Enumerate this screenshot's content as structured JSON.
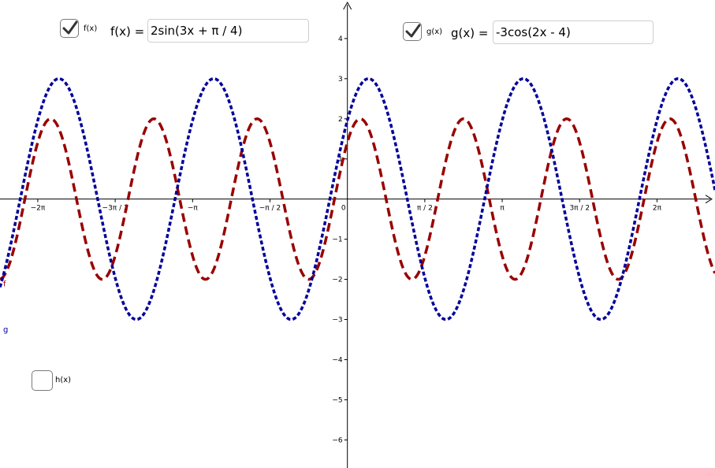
{
  "controls": {
    "f": {
      "checkbox_label": "f(x)",
      "equation_label": "f(x) = .",
      "input_value": "2sin(3x + π / 4)",
      "checked": true
    },
    "g": {
      "checkbox_label": "g(x)",
      "equation_label": "g(x) = .",
      "input_value": "-3cos(2x - 4)",
      "checked": true
    },
    "h": {
      "checkbox_label": "h(x)",
      "checked": false
    }
  },
  "colors": {
    "f": "#990000",
    "g": "#000099",
    "axis": "#000000"
  },
  "chart_data": {
    "type": "line",
    "xlim": [
      -7.05,
      7.46
    ],
    "ylim": [
      -6.7,
      4.96
    ],
    "x_ticks": [
      {
        "value": -6.2832,
        "label": "−2π"
      },
      {
        "value": -4.7124,
        "label": "−3π / 2"
      },
      {
        "value": -3.1416,
        "label": "−π"
      },
      {
        "value": -1.5708,
        "label": "−π / 2"
      },
      {
        "value": 0,
        "label": "0"
      },
      {
        "value": 1.5708,
        "label": "π / 2"
      },
      {
        "value": 3.1416,
        "label": "π"
      },
      {
        "value": 4.7124,
        "label": "3π / 2"
      },
      {
        "value": 6.2832,
        "label": "2π"
      }
    ],
    "y_ticks": [
      {
        "value": 4,
        "label": "4"
      },
      {
        "value": 3,
        "label": "3"
      },
      {
        "value": 2,
        "label": "2"
      },
      {
        "value": 1,
        "label": "1"
      },
      {
        "value": -1,
        "label": "−1"
      },
      {
        "value": -2,
        "label": "−2"
      },
      {
        "value": -3,
        "label": "−3"
      },
      {
        "value": -4,
        "label": "−4"
      },
      {
        "value": -5,
        "label": "−5"
      },
      {
        "value": -6,
        "label": "−6"
      }
    ],
    "series": [
      {
        "name": "f",
        "expression": "2sin(3x + π / 4)",
        "amplitude": 2,
        "frequency": 3,
        "phase": 0.7854,
        "func": "sin",
        "style": "dashed",
        "color": "#990000"
      },
      {
        "name": "g",
        "expression": "-3cos(2x - 4)",
        "amplitude": -3,
        "frequency": 2,
        "phase": -4,
        "func": "cos",
        "style": "dotted",
        "color": "#000099"
      }
    ]
  }
}
